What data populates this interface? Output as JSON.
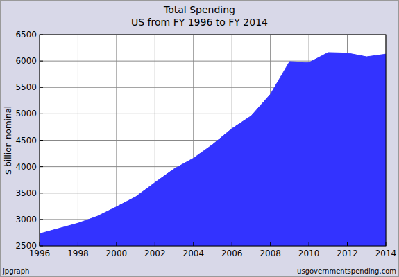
{
  "chart_data": {
    "type": "area",
    "title": "Total Spending",
    "subtitle": "US from FY 1996 to FY 2014",
    "y_label": "$ billion nominal",
    "credit": "jpgraph",
    "source": "usgovernmentspending.com",
    "x": [
      1996,
      1997,
      1998,
      1999,
      2000,
      2001,
      2002,
      2003,
      2004,
      2005,
      2006,
      2007,
      2008,
      2009,
      2010,
      2011,
      2012,
      2013,
      2014
    ],
    "values": [
      2730,
      2830,
      2930,
      3060,
      3240,
      3430,
      3700,
      3960,
      4160,
      4420,
      4720,
      4960,
      5370,
      5990,
      5970,
      6160,
      6150,
      6080,
      6130
    ],
    "color": "#3333ff",
    "xlim": [
      1996,
      2014
    ],
    "xticks": [
      1996,
      1998,
      2000,
      2002,
      2004,
      2006,
      2008,
      2010,
      2012,
      2014
    ],
    "ylim": [
      2500,
      6500
    ],
    "yticks": [
      2500,
      3000,
      3500,
      4000,
      4500,
      5000,
      5500,
      6000,
      6500
    ],
    "grid": true
  }
}
